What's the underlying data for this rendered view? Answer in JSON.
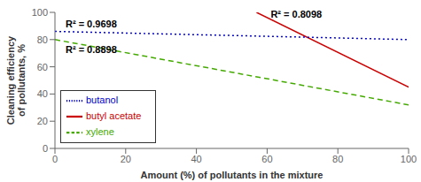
{
  "chart_data": {
    "type": "line",
    "xlabel": "Amount (%) of pollutants in the mixture",
    "ylabel": "Cleaning efficiency\nof pollutants, %",
    "series": [
      {
        "name": "butyl acetate",
        "color": "#cc0000",
        "line_style": "solid",
        "x": [
          57,
          100
        ],
        "values": [
          100,
          45
        ]
      },
      {
        "name": "butanol",
        "color": "#0000cc",
        "line_style": "dotted",
        "x": [
          0,
          100
        ],
        "values": [
          86,
          80
        ]
      },
      {
        "name": "xylene",
        "color": "#44aa00",
        "line_style": "dashed",
        "x": [
          0,
          100
        ],
        "values": [
          80,
          32
        ]
      }
    ],
    "annotations": [
      {
        "text": "R² = 0.9698",
        "x": 3,
        "y": 89
      },
      {
        "text": "R² = 0.8098",
        "x": 61,
        "y": 96
      },
      {
        "text": "R² = 0.8898",
        "x": 3,
        "y": 70
      }
    ],
    "xlim": [
      0,
      100
    ],
    "ylim": [
      0,
      100
    ],
    "xticks": [
      0,
      20,
      40,
      60,
      80,
      100
    ],
    "yticks": [
      0,
      20,
      40,
      60,
      80,
      100
    ],
    "legend": "lower left",
    "grid": false
  }
}
